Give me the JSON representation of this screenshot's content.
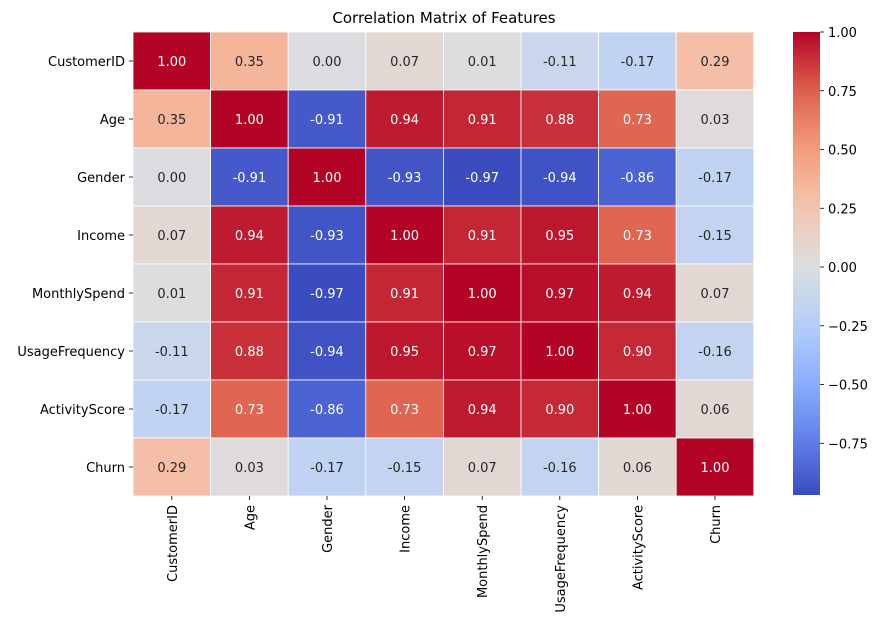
{
  "chart_data": {
    "type": "heatmap",
    "title": "Correlation Matrix of Features",
    "xlabel": "",
    "ylabel": "",
    "labels": [
      "CustomerID",
      "Age",
      "Gender",
      "Income",
      "MonthlySpend",
      "UsageFrequency",
      "ActivityScore",
      "Churn"
    ],
    "matrix": [
      [
        1.0,
        0.35,
        0.0,
        0.07,
        0.01,
        -0.11,
        -0.17,
        0.29
      ],
      [
        0.35,
        1.0,
        -0.91,
        0.94,
        0.91,
        0.88,
        0.73,
        0.03
      ],
      [
        0.0,
        -0.91,
        1.0,
        -0.93,
        -0.97,
        -0.94,
        -0.86,
        -0.17
      ],
      [
        0.07,
        0.94,
        -0.93,
        1.0,
        0.91,
        0.95,
        0.73,
        -0.15
      ],
      [
        0.01,
        0.91,
        -0.97,
        0.91,
        1.0,
        0.97,
        0.94,
        0.07
      ],
      [
        -0.11,
        0.88,
        -0.94,
        0.95,
        0.97,
        1.0,
        0.9,
        -0.16
      ],
      [
        -0.17,
        0.73,
        -0.86,
        0.73,
        0.94,
        0.9,
        1.0,
        0.06
      ],
      [
        0.29,
        0.03,
        -0.17,
        -0.15,
        0.07,
        -0.16,
        0.06,
        1.0
      ]
    ],
    "colormap": "coolwarm",
    "vmin": -0.97,
    "vmax": 1.0,
    "colorbar_ticks": [
      1.0,
      0.75,
      0.5,
      0.25,
      0.0,
      -0.25,
      -0.5,
      -0.75
    ],
    "colorbar_tick_labels": [
      "1.00",
      "0.75",
      "0.50",
      "0.25",
      "0.00",
      "−0.25",
      "−0.50",
      "−0.75"
    ],
    "annotations": true,
    "annotation_format": "0.00",
    "grid": false,
    "legend": "colorbar-right"
  }
}
